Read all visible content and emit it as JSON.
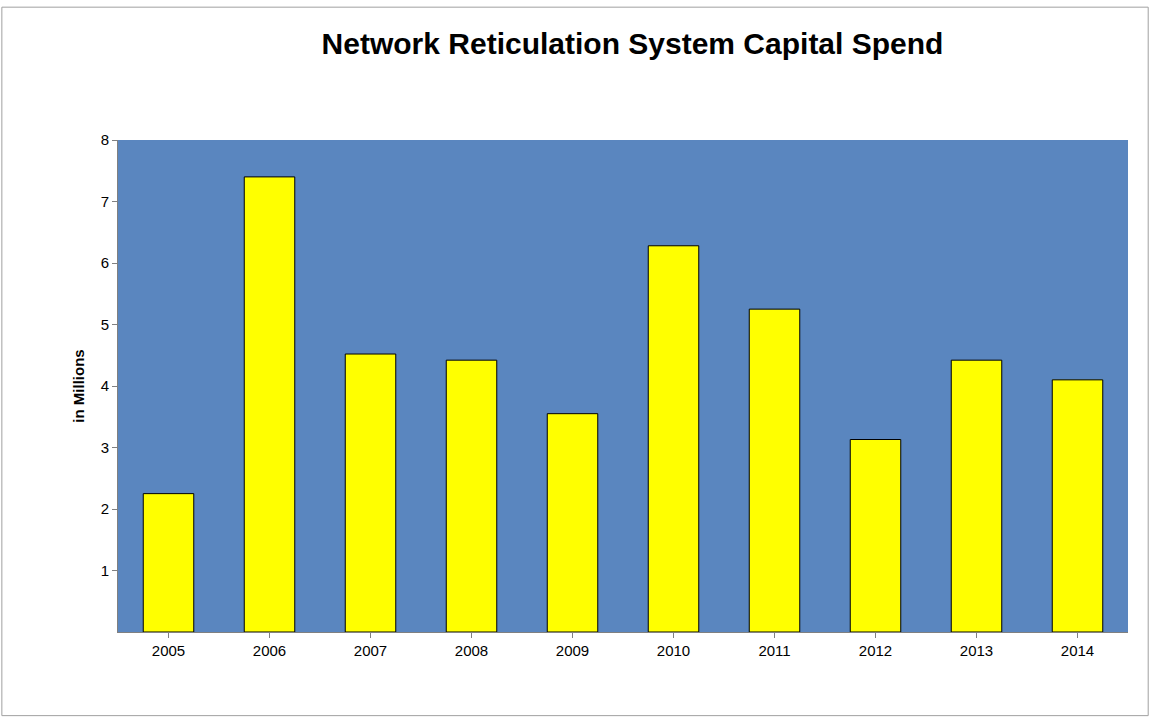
{
  "chart_data": {
    "type": "bar",
    "title": "Network Reticulation System Capital Spend",
    "y_label": "in Millions",
    "categories": [
      "2005",
      "2006",
      "2007",
      "2008",
      "2009",
      "2010",
      "2011",
      "2012",
      "2013",
      "2014"
    ],
    "values": [
      2.25,
      7.4,
      4.52,
      4.42,
      3.55,
      6.28,
      5.25,
      3.13,
      4.42,
      4.1
    ],
    "color": "#ffff00",
    "ylim": [
      0,
      8
    ],
    "yticks": [
      1,
      2,
      3,
      4,
      5,
      6,
      7,
      8
    ],
    "grid": false
  }
}
